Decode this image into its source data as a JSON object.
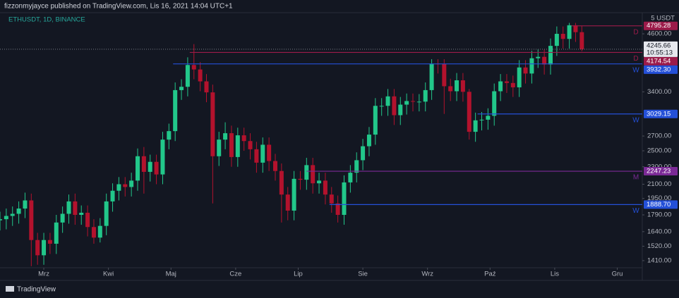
{
  "header": "fizzonmyjayce published on TradingView.com, Lis 16, 2021 14:04 UTC+1",
  "footer": "TradingView",
  "chart_data": {
    "type": "candlestick",
    "title": "ETHUSDT, 1D, BINANCE",
    "unit_label": "5 USDT",
    "countdown": "10:55:13",
    "log_scale": true,
    "up_color": "#22c78a",
    "down_color": "#b3122d",
    "x": [
      "2021-02-08",
      "2021-02-11",
      "2021-02-14",
      "2021-02-17",
      "2021-02-20",
      "2021-02-23",
      "2021-02-26",
      "2021-03-01",
      "2021-03-04",
      "2021-03-07",
      "2021-03-10",
      "2021-03-13",
      "2021-03-16",
      "2021-03-19",
      "2021-03-22",
      "2021-03-25",
      "2021-03-28",
      "2021-03-31",
      "2021-04-03",
      "2021-04-06",
      "2021-04-09",
      "2021-04-12",
      "2021-04-15",
      "2021-04-18",
      "2021-04-21",
      "2021-04-24",
      "2021-04-27",
      "2021-04-30",
      "2021-05-03",
      "2021-05-06",
      "2021-05-09",
      "2021-05-12",
      "2021-05-15",
      "2021-05-18",
      "2021-05-21",
      "2021-05-24",
      "2021-05-27",
      "2021-05-30",
      "2021-06-02",
      "2021-06-05",
      "2021-06-08",
      "2021-06-11",
      "2021-06-14",
      "2021-06-17",
      "2021-06-20",
      "2021-06-23",
      "2021-06-26",
      "2021-06-29",
      "2021-07-02",
      "2021-07-05",
      "2021-07-08",
      "2021-07-11",
      "2021-07-14",
      "2021-07-17",
      "2021-07-20",
      "2021-07-23",
      "2021-07-26",
      "2021-07-29",
      "2021-08-01",
      "2021-08-04",
      "2021-08-07",
      "2021-08-10",
      "2021-08-13",
      "2021-08-16",
      "2021-08-19",
      "2021-08-22",
      "2021-08-25",
      "2021-08-28",
      "2021-08-31",
      "2021-09-03",
      "2021-09-06",
      "2021-09-09",
      "2021-09-12",
      "2021-09-15",
      "2021-09-18",
      "2021-09-21",
      "2021-09-24",
      "2021-09-27",
      "2021-09-30",
      "2021-10-03",
      "2021-10-06",
      "2021-10-09",
      "2021-10-12",
      "2021-10-15",
      "2021-10-18",
      "2021-10-21",
      "2021-10-24",
      "2021-10-27",
      "2021-10-30",
      "2021-11-02",
      "2021-11-05",
      "2021-11-08",
      "2021-11-11",
      "2021-11-14"
    ],
    "open": [
      1740,
      1750,
      1780,
      1800,
      1850,
      1930,
      1570,
      1450,
      1570,
      1540,
      1720,
      1800,
      1920,
      1790,
      1810,
      1680,
      1590,
      1690,
      1920,
      2030,
      2100,
      2070,
      2140,
      2430,
      2240,
      2360,
      2210,
      2650,
      2770,
      3430,
      3490,
      3910,
      3820,
      3590,
      3390,
      2430,
      2650,
      2740,
      2420,
      2710,
      2630,
      2520,
      2350,
      2580,
      2370,
      2250,
      1990,
      1830,
      2160,
      2150,
      2320,
      2110,
      2140,
      1990,
      1900,
      1790,
      2120,
      2230,
      2380,
      2560,
      2720,
      3160,
      3160,
      3320,
      3010,
      3180,
      3240,
      3230,
      3230,
      3430,
      3940,
      3930,
      3500,
      3410,
      3610,
      3400,
      2760,
      2930,
      2940,
      3000,
      3410,
      3590,
      3560,
      3480,
      3860,
      3740,
      4050,
      4080,
      3920,
      4320,
      4600,
      4480,
      4810,
      4640
    ],
    "high": [
      1820,
      1850,
      1870,
      1920,
      2010,
      2000,
      1630,
      1630,
      1630,
      1790,
      1870,
      1990,
      2000,
      1880,
      1880,
      1750,
      1760,
      2000,
      2110,
      2180,
      2180,
      2230,
      2530,
      2550,
      2450,
      2450,
      2760,
      2880,
      3570,
      3630,
      4070,
      4360,
      3970,
      3730,
      3530,
      2760,
      2900,
      2850,
      2820,
      2820,
      2740,
      2620,
      2680,
      2680,
      2460,
      2340,
      2070,
      2250,
      2250,
      2410,
      2410,
      2230,
      2230,
      2070,
      1980,
      2200,
      2320,
      2480,
      2660,
      2830,
      3290,
      3290,
      3450,
      3450,
      3310,
      3370,
      3370,
      3360,
      3570,
      4030,
      4030,
      4030,
      3640,
      3750,
      3750,
      3450,
      3050,
      3060,
      3120,
      3550,
      3730,
      3730,
      3700,
      4010,
      4010,
      4210,
      4240,
      4240,
      4490,
      4780,
      4780,
      4870,
      4870,
      4800
    ],
    "low": [
      1650,
      1660,
      1690,
      1710,
      1760,
      1370,
      1380,
      1380,
      1460,
      1460,
      1630,
      1710,
      1700,
      1700,
      1600,
      1540,
      1550,
      1610,
      1820,
      1930,
      1970,
      1970,
      2030,
      2000,
      2130,
      2100,
      2100,
      2520,
      2630,
      3260,
      3320,
      3630,
      3410,
      3220,
      1900,
      2310,
      2520,
      2300,
      2300,
      2500,
      2390,
      2230,
      2230,
      2250,
      2140,
      1720,
      1740,
      1740,
      2040,
      2040,
      2000,
      2000,
      1890,
      1810,
      1720,
      1700,
      2010,
      2120,
      2260,
      2430,
      2580,
      3000,
      3000,
      2860,
      2860,
      3020,
      3070,
      3070,
      3070,
      3260,
      3740,
      3030,
      3240,
      3240,
      3230,
      2650,
      2620,
      2780,
      2790,
      2850,
      3240,
      3380,
      3310,
      3310,
      3550,
      3550,
      3850,
      3720,
      3720,
      4100,
      4260,
      4260,
      4410,
      4200
    ],
    "close": [
      1750,
      1780,
      1800,
      1850,
      1930,
      1570,
      1450,
      1570,
      1540,
      1720,
      1800,
      1920,
      1790,
      1810,
      1680,
      1590,
      1690,
      1920,
      2030,
      2100,
      2070,
      2140,
      2430,
      2240,
      2360,
      2210,
      2650,
      2770,
      3430,
      3490,
      3910,
      3820,
      3590,
      3390,
      2430,
      2650,
      2740,
      2420,
      2710,
      2630,
      2520,
      2350,
      2580,
      2370,
      2250,
      1990,
      1830,
      2160,
      2150,
      2320,
      2110,
      2140,
      1990,
      1900,
      1790,
      2120,
      2230,
      2380,
      2560,
      2720,
      3160,
      3160,
      3320,
      3010,
      3180,
      3240,
      3230,
      3230,
      3430,
      3940,
      3930,
      3500,
      3410,
      3610,
      3400,
      2760,
      2930,
      2940,
      3000,
      3410,
      3590,
      3560,
      3480,
      3860,
      3740,
      4050,
      4080,
      3920,
      4320,
      4600,
      4480,
      4810,
      4640,
      4245.66
    ],
    "xlim": [
      "2021-02-08",
      "2021-12-13"
    ],
    "xticks": [
      {
        "value": "2021-03-01",
        "label": "Mrz"
      },
      {
        "value": "2021-04-01",
        "label": "Kwi"
      },
      {
        "value": "2021-05-01",
        "label": "Maj"
      },
      {
        "value": "2021-06-01",
        "label": "Cze"
      },
      {
        "value": "2021-07-01",
        "label": "Lip"
      },
      {
        "value": "2021-08-01",
        "label": "Sie"
      },
      {
        "value": "2021-09-01",
        "label": "Wrz"
      },
      {
        "value": "2021-10-01",
        "label": "Paź"
      },
      {
        "value": "2021-11-01",
        "label": "Lis"
      },
      {
        "value": "2021-12-01",
        "label": "Gru"
      }
    ],
    "ylim": [
      1359,
      5136
    ],
    "yticks": [
      {
        "value": 4600,
        "label": "4600.00"
      },
      {
        "value": 3400,
        "label": "3400.00"
      },
      {
        "value": 2700,
        "label": "2700.00"
      },
      {
        "value": 2500,
        "label": "2500.00"
      },
      {
        "value": 2300,
        "label": "2300.00"
      },
      {
        "value": 2100,
        "label": "2100.00"
      },
      {
        "value": 1950,
        "label": "1950.00"
      },
      {
        "value": 1790,
        "label": "1790.00"
      },
      {
        "value": 1640,
        "label": "1640.00"
      },
      {
        "value": 1520,
        "label": "1520.00"
      },
      {
        "value": 1410,
        "label": "1410.00"
      }
    ],
    "levels": [
      {
        "value": 4795.28,
        "value_label": "4795.28",
        "from": "2021-11-09",
        "label": "D",
        "color": "#9c1b4a"
      },
      {
        "value": 4174.54,
        "value_label": "4174.54",
        "from": "2021-05-10",
        "label": "D",
        "color": "#9c1b4a"
      },
      {
        "value": 3932.3,
        "value_label": "3932.30",
        "from": "2021-05-02",
        "label": "W",
        "color": "#2450d8"
      },
      {
        "value": 3029.15,
        "value_label": "3029.15",
        "from": "2021-09-25",
        "label": "W",
        "color": "#2450d8"
      },
      {
        "value": 2247.23,
        "value_label": "2247.23",
        "from": "2021-07-05",
        "label": "M",
        "color": "#7b2a96"
      },
      {
        "value": 1888.7,
        "value_label": "1888.70",
        "from": "2021-07-16",
        "label": "W",
        "color": "#2450d8"
      }
    ]
  }
}
